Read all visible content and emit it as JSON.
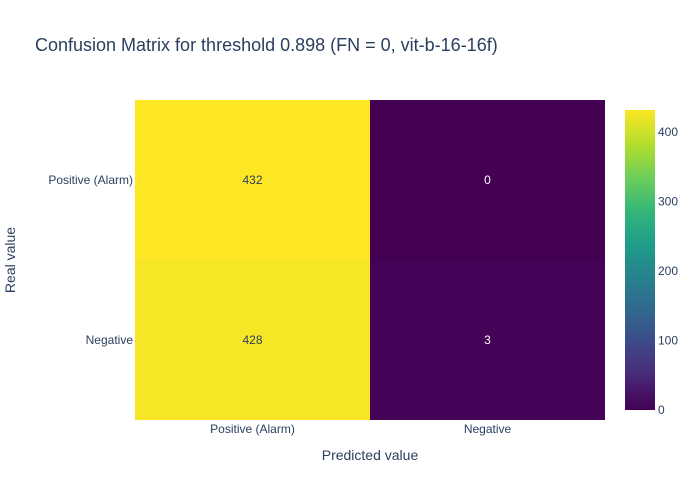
{
  "chart_data": {
    "type": "heatmap",
    "title": "Confusion Matrix for threshold 0.898 (FN = 0, vit-b-16-16f)",
    "xlabel": "Predicted value",
    "ylabel": "Real value",
    "x_categories": [
      "Positive (Alarm)",
      "Negative"
    ],
    "y_categories": [
      "Positive (Alarm)",
      "Negative"
    ],
    "z": [
      [
        432,
        0
      ],
      [
        428,
        3
      ]
    ],
    "colorscale": "Viridis",
    "zrange": [
      0,
      432
    ],
    "colorbar": {
      "tickvals": [
        0,
        100,
        200,
        300,
        400
      ],
      "ticktext": [
        "0",
        "100",
        "200",
        "300",
        "400"
      ]
    },
    "label_colors": {
      "light_cell": "#2a3f5f",
      "dark_cell": "#ffffff"
    }
  }
}
